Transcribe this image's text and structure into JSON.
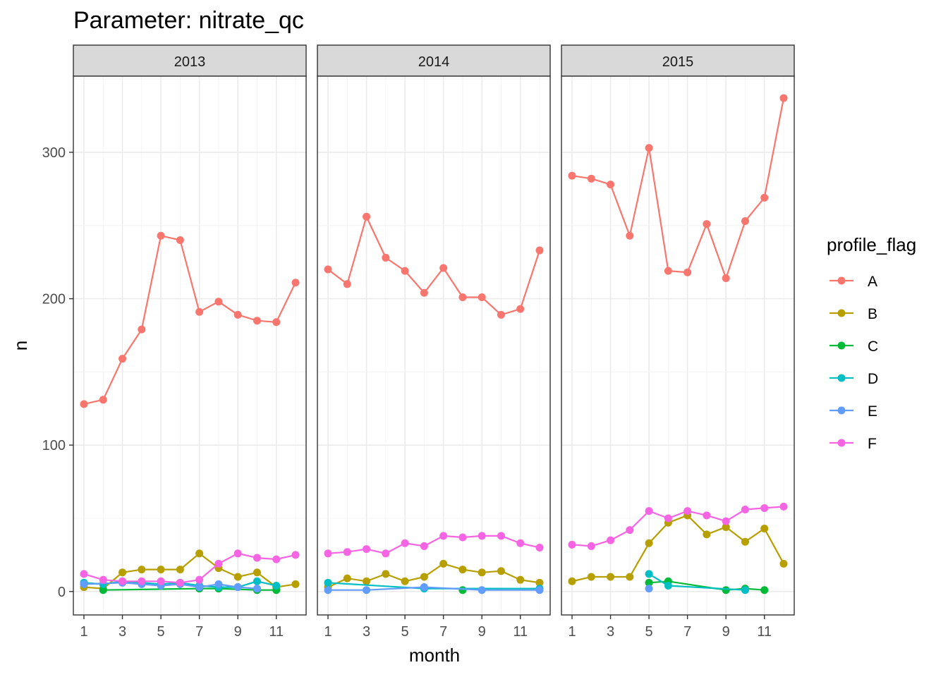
{
  "chart_data": {
    "type": "line",
    "title": "Parameter:  nitrate_qc",
    "xlabel": "month",
    "ylabel": "n",
    "x_ticks": [
      1,
      3,
      5,
      7,
      9,
      11
    ],
    "y_ticks": [
      0,
      100,
      200,
      300
    ],
    "xlim": [
      0.45,
      12.55
    ],
    "ylim": [
      -16,
      352
    ],
    "grid": true,
    "legend": {
      "title": "profile_flag",
      "position": "right"
    },
    "colors": {
      "A": "#F8766D",
      "B": "#B79F00",
      "C": "#00BA38",
      "D": "#00BFC4",
      "E": "#619CFF",
      "F": "#F564E3"
    },
    "panels": [
      {
        "label": "2013",
        "series": [
          {
            "name": "A",
            "points": [
              [
                1,
                128
              ],
              [
                2,
                131
              ],
              [
                3,
                159
              ],
              [
                4,
                179
              ],
              [
                5,
                243
              ],
              [
                6,
                240
              ],
              [
                7,
                191
              ],
              [
                8,
                198
              ],
              [
                9,
                189
              ],
              [
                10,
                185
              ],
              [
                11,
                184
              ],
              [
                12,
                211
              ]
            ]
          },
          {
            "name": "B",
            "points": [
              [
                1,
                3
              ],
              [
                2,
                2
              ],
              [
                3,
                13
              ],
              [
                4,
                15
              ],
              [
                5,
                15
              ],
              [
                6,
                15
              ],
              [
                7,
                26
              ],
              [
                8,
                16
              ],
              [
                9,
                10
              ],
              [
                10,
                13
              ],
              [
                11,
                3
              ],
              [
                12,
                5
              ]
            ]
          },
          {
            "name": "C",
            "points": [
              [
                2,
                1
              ],
              [
                7,
                2
              ],
              [
                8,
                2
              ],
              [
                10,
                1
              ],
              [
                11,
                1
              ]
            ]
          },
          {
            "name": "D",
            "points": [
              [
                1,
                6
              ],
              [
                2,
                5
              ],
              [
                3,
                7
              ],
              [
                4,
                6
              ],
              [
                5,
                5
              ],
              [
                6,
                6
              ],
              [
                7,
                4
              ],
              [
                8,
                3
              ],
              [
                9,
                3
              ],
              [
                10,
                7
              ],
              [
                11,
                4
              ]
            ]
          },
          {
            "name": "E",
            "points": [
              [
                1,
                5
              ],
              [
                3,
                6
              ],
              [
                4,
                5
              ],
              [
                5,
                4
              ],
              [
                6,
                5
              ],
              [
                7,
                3
              ],
              [
                8,
                5
              ],
              [
                9,
                3
              ],
              [
                10,
                2
              ]
            ]
          },
          {
            "name": "F",
            "points": [
              [
                1,
                12
              ],
              [
                2,
                8
              ],
              [
                3,
                7
              ],
              [
                4,
                7
              ],
              [
                5,
                7
              ],
              [
                6,
                6
              ],
              [
                7,
                8
              ],
              [
                8,
                19
              ],
              [
                9,
                26
              ],
              [
                10,
                23
              ],
              [
                11,
                22
              ],
              [
                12,
                25
              ]
            ]
          }
        ]
      },
      {
        "label": "2014",
        "series": [
          {
            "name": "A",
            "points": [
              [
                1,
                220
              ],
              [
                2,
                210
              ],
              [
                3,
                256
              ],
              [
                4,
                228
              ],
              [
                5,
                219
              ],
              [
                6,
                204
              ],
              [
                7,
                221
              ],
              [
                8,
                201
              ],
              [
                9,
                201
              ],
              [
                10,
                189
              ],
              [
                11,
                193
              ],
              [
                12,
                233
              ]
            ]
          },
          {
            "name": "B",
            "points": [
              [
                1,
                3
              ],
              [
                2,
                9
              ],
              [
                3,
                7
              ],
              [
                4,
                12
              ],
              [
                5,
                7
              ],
              [
                6,
                10
              ],
              [
                7,
                19
              ],
              [
                8,
                15
              ],
              [
                9,
                13
              ],
              [
                10,
                14
              ],
              [
                11,
                8
              ],
              [
                12,
                6
              ]
            ]
          },
          {
            "name": "C",
            "points": [
              [
                8,
                1
              ]
            ]
          },
          {
            "name": "D",
            "points": [
              [
                1,
                6
              ],
              [
                6,
                2
              ],
              [
                12,
                2
              ]
            ]
          },
          {
            "name": "E",
            "points": [
              [
                1,
                1
              ],
              [
                3,
                1
              ],
              [
                6,
                3
              ],
              [
                9,
                1
              ],
              [
                12,
                1
              ]
            ]
          },
          {
            "name": "F",
            "points": [
              [
                1,
                26
              ],
              [
                2,
                27
              ],
              [
                3,
                29
              ],
              [
                4,
                26
              ],
              [
                5,
                33
              ],
              [
                6,
                31
              ],
              [
                7,
                38
              ],
              [
                8,
                37
              ],
              [
                9,
                38
              ],
              [
                10,
                38
              ],
              [
                11,
                33
              ],
              [
                12,
                30
              ]
            ]
          }
        ]
      },
      {
        "label": "2015",
        "series": [
          {
            "name": "A",
            "points": [
              [
                1,
                284
              ],
              [
                2,
                282
              ],
              [
                3,
                278
              ],
              [
                4,
                243
              ],
              [
                5,
                303
              ],
              [
                6,
                219
              ],
              [
                7,
                218
              ],
              [
                8,
                251
              ],
              [
                9,
                214
              ],
              [
                10,
                253
              ],
              [
                11,
                269
              ],
              [
                12,
                337
              ]
            ]
          },
          {
            "name": "B",
            "points": [
              [
                1,
                7
              ],
              [
                2,
                10
              ],
              [
                3,
                10
              ],
              [
                4,
                10
              ],
              [
                5,
                33
              ],
              [
                6,
                47
              ],
              [
                7,
                52
              ],
              [
                8,
                39
              ],
              [
                9,
                44
              ],
              [
                10,
                34
              ],
              [
                11,
                43
              ],
              [
                12,
                19
              ]
            ]
          },
          {
            "name": "C",
            "points": [
              [
                5,
                6
              ],
              [
                6,
                7
              ],
              [
                9,
                1
              ],
              [
                10,
                2
              ],
              [
                11,
                1
              ]
            ]
          },
          {
            "name": "D",
            "points": [
              [
                5,
                12
              ],
              [
                6,
                4
              ],
              [
                10,
                1
              ]
            ]
          },
          {
            "name": "E",
            "points": [
              [
                5,
                2
              ]
            ]
          },
          {
            "name": "F",
            "points": [
              [
                1,
                32
              ],
              [
                2,
                31
              ],
              [
                3,
                35
              ],
              [
                4,
                42
              ],
              [
                5,
                55
              ],
              [
                6,
                50
              ],
              [
                7,
                55
              ],
              [
                8,
                52
              ],
              [
                9,
                48
              ],
              [
                10,
                56
              ],
              [
                11,
                57
              ],
              [
                12,
                58
              ]
            ]
          }
        ]
      }
    ]
  }
}
